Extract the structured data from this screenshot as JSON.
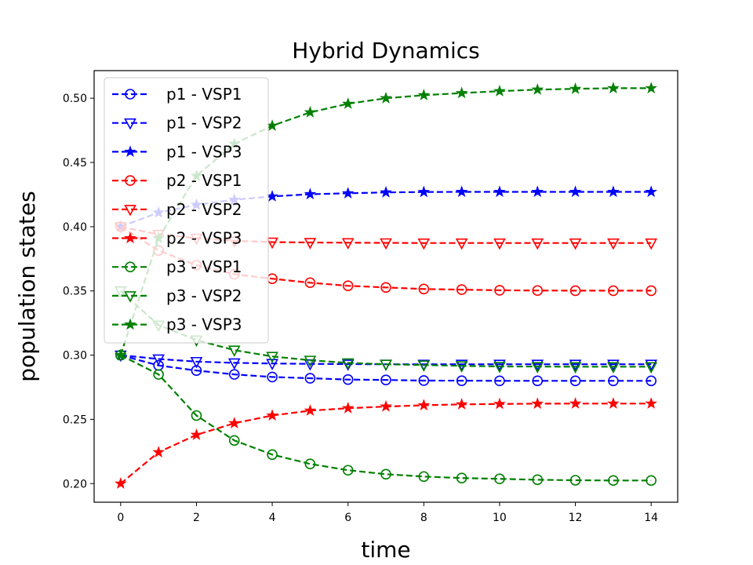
{
  "chart_data": {
    "type": "line",
    "title": "Hybrid Dynamics",
    "xlabel": "time",
    "ylabel": "population states",
    "xlim": [
      -0.7,
      14.7
    ],
    "ylim": [
      0.1855,
      0.5215
    ],
    "xticks": [
      0,
      2,
      4,
      6,
      8,
      10,
      12,
      14
    ],
    "yticks": [
      0.2,
      0.25,
      0.3,
      0.35,
      0.4,
      0.45,
      0.5
    ],
    "ytick_labels": [
      "0.20",
      "0.25",
      "0.30",
      "0.35",
      "0.40",
      "0.45",
      "0.50"
    ],
    "grid": false,
    "legend_placement": "upper-left",
    "x": [
      0,
      1,
      2,
      3,
      4,
      5,
      6,
      7,
      8,
      9,
      10,
      11,
      12,
      13,
      14
    ],
    "series": [
      {
        "name": "p1 - VSP1",
        "color": "#0000ff",
        "marker": "circle",
        "values": [
          0.3,
          0.292,
          0.288,
          0.285,
          0.283,
          0.282,
          0.281,
          0.2807,
          0.2802,
          0.2801,
          0.28,
          0.28,
          0.28,
          0.28,
          0.28
        ]
      },
      {
        "name": "p1 - VSP2",
        "color": "#0000ff",
        "marker": "triangle-down",
        "values": [
          0.3,
          0.297,
          0.295,
          0.294,
          0.2935,
          0.2932,
          0.293,
          0.2929,
          0.2929,
          0.2929,
          0.2929,
          0.2929,
          0.2929,
          0.2929,
          0.2929
        ]
      },
      {
        "name": "p1 - VSP3",
        "color": "#0000ff",
        "marker": "star",
        "values": [
          0.4,
          0.411,
          0.417,
          0.421,
          0.4236,
          0.4253,
          0.426,
          0.4267,
          0.427,
          0.4271,
          0.4271,
          0.4271,
          0.4271,
          0.4271,
          0.4271
        ]
      },
      {
        "name": "p2 - VSP1",
        "color": "#ff0000",
        "marker": "circle",
        "values": [
          0.4,
          0.3815,
          0.37,
          0.363,
          0.3595,
          0.3564,
          0.354,
          0.3527,
          0.3515,
          0.351,
          0.3505,
          0.3503,
          0.3502,
          0.3502,
          0.3502
        ]
      },
      {
        "name": "p2 - VSP2",
        "color": "#ff0000",
        "marker": "triangle-down",
        "values": [
          0.4,
          0.394,
          0.391,
          0.389,
          0.388,
          0.3877,
          0.3875,
          0.3874,
          0.3873,
          0.3873,
          0.3873,
          0.3873,
          0.3873,
          0.3873,
          0.3873
        ]
      },
      {
        "name": "p2 - VSP3",
        "color": "#ff0000",
        "marker": "star",
        "values": [
          0.2,
          0.2244,
          0.2379,
          0.247,
          0.253,
          0.2568,
          0.2587,
          0.26,
          0.261,
          0.2617,
          0.262,
          0.2622,
          0.2623,
          0.2623,
          0.2623
        ]
      },
      {
        "name": "p3 - VSP1",
        "color": "#008000",
        "marker": "circle",
        "values": [
          0.3,
          0.285,
          0.253,
          0.2336,
          0.2226,
          0.2153,
          0.2104,
          0.2073,
          0.2055,
          0.2043,
          0.2037,
          0.203,
          0.2026,
          0.2024,
          0.2024
        ]
      },
      {
        "name": "p3 - VSP2",
        "color": "#008000",
        "marker": "triangle-down",
        "values": [
          0.35,
          0.3234,
          0.3118,
          0.3039,
          0.299,
          0.296,
          0.294,
          0.2929,
          0.2923,
          0.2917,
          0.2912,
          0.2911,
          0.291,
          0.291,
          0.291
        ]
      },
      {
        "name": "p3 - VSP3",
        "color": "#008000",
        "marker": "star",
        "values": [
          0.3,
          0.391,
          0.4395,
          0.4645,
          0.4786,
          0.489,
          0.4957,
          0.5,
          0.5024,
          0.504,
          0.5055,
          0.5067,
          0.5073,
          0.5078,
          0.5078
        ]
      }
    ]
  }
}
